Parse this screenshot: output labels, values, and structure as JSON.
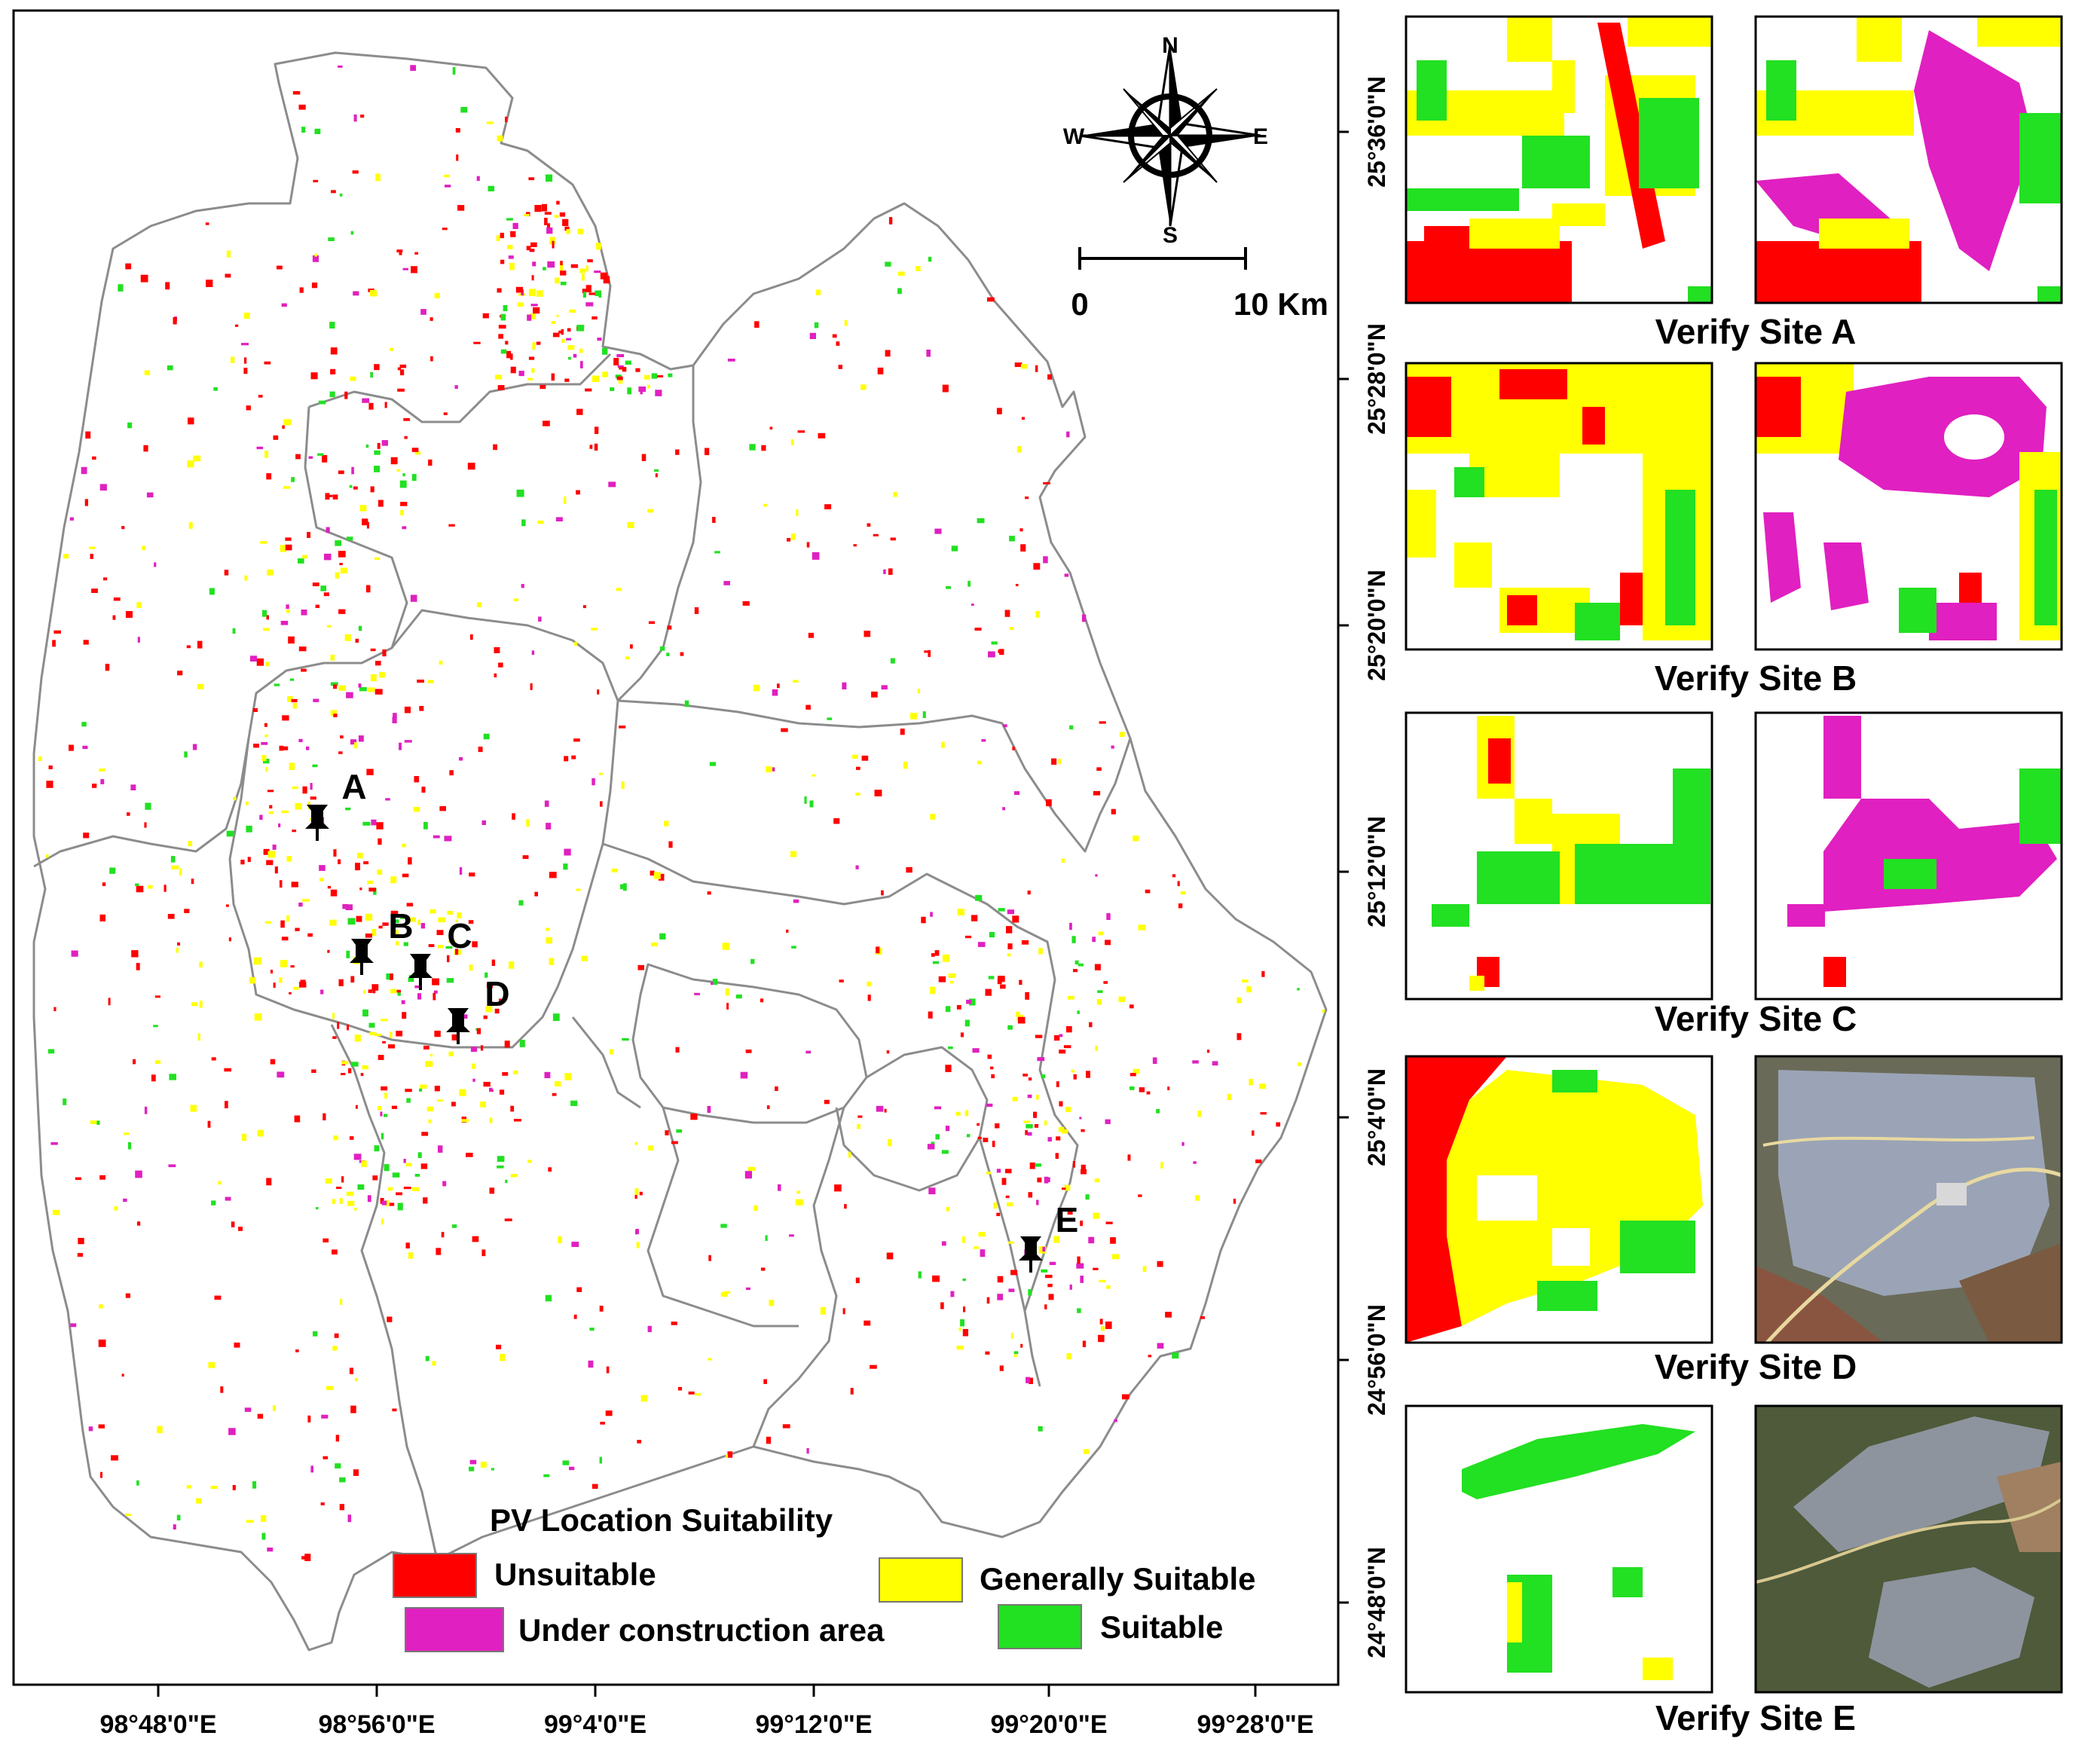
{
  "map": {
    "compass": {
      "north": "N",
      "south": "S",
      "east": "E",
      "west": "W"
    },
    "scale": {
      "start": "0",
      "end": "10 Km"
    },
    "sites": [
      {
        "id": "A",
        "label": "A"
      },
      {
        "id": "B",
        "label": "B"
      },
      {
        "id": "C",
        "label": "C"
      },
      {
        "id": "D",
        "label": "D"
      },
      {
        "id": "E",
        "label": "E"
      }
    ],
    "x_ticks": [
      "98°48'0\"E",
      "98°56'0\"E",
      "99°4'0\"E",
      "99°12'0\"E",
      "99°20'0\"E",
      "99°28'0\"E"
    ],
    "y_ticks": [
      "25°36'0\"N",
      "25°28'0\"N",
      "25°20'0\"N",
      "25°12'0\"N",
      "25°4'0\"N",
      "24°56'0\"N",
      "24°48'0\"N"
    ]
  },
  "legend": {
    "title": "PV Location Suitability",
    "items": [
      {
        "label": "Unsuitable",
        "color": "#ff0000"
      },
      {
        "label": "Generally Suitable",
        "color": "#ffff00"
      },
      {
        "label": "Under construction area",
        "color": "#e020c0"
      },
      {
        "label": "Suitable",
        "color": "#22e022"
      }
    ]
  },
  "panels": [
    {
      "caption": "Verify Site A"
    },
    {
      "caption": "Verify Site B"
    },
    {
      "caption": "Verify Site C"
    },
    {
      "caption": "Verify Site D"
    },
    {
      "caption": "Verify Site E"
    }
  ],
  "colors": {
    "unsuitable": "#ff0000",
    "generally_suitable": "#ffff00",
    "under_construction": "#e020c0",
    "suitable": "#22e022",
    "boundary": "#8c8c8c"
  }
}
